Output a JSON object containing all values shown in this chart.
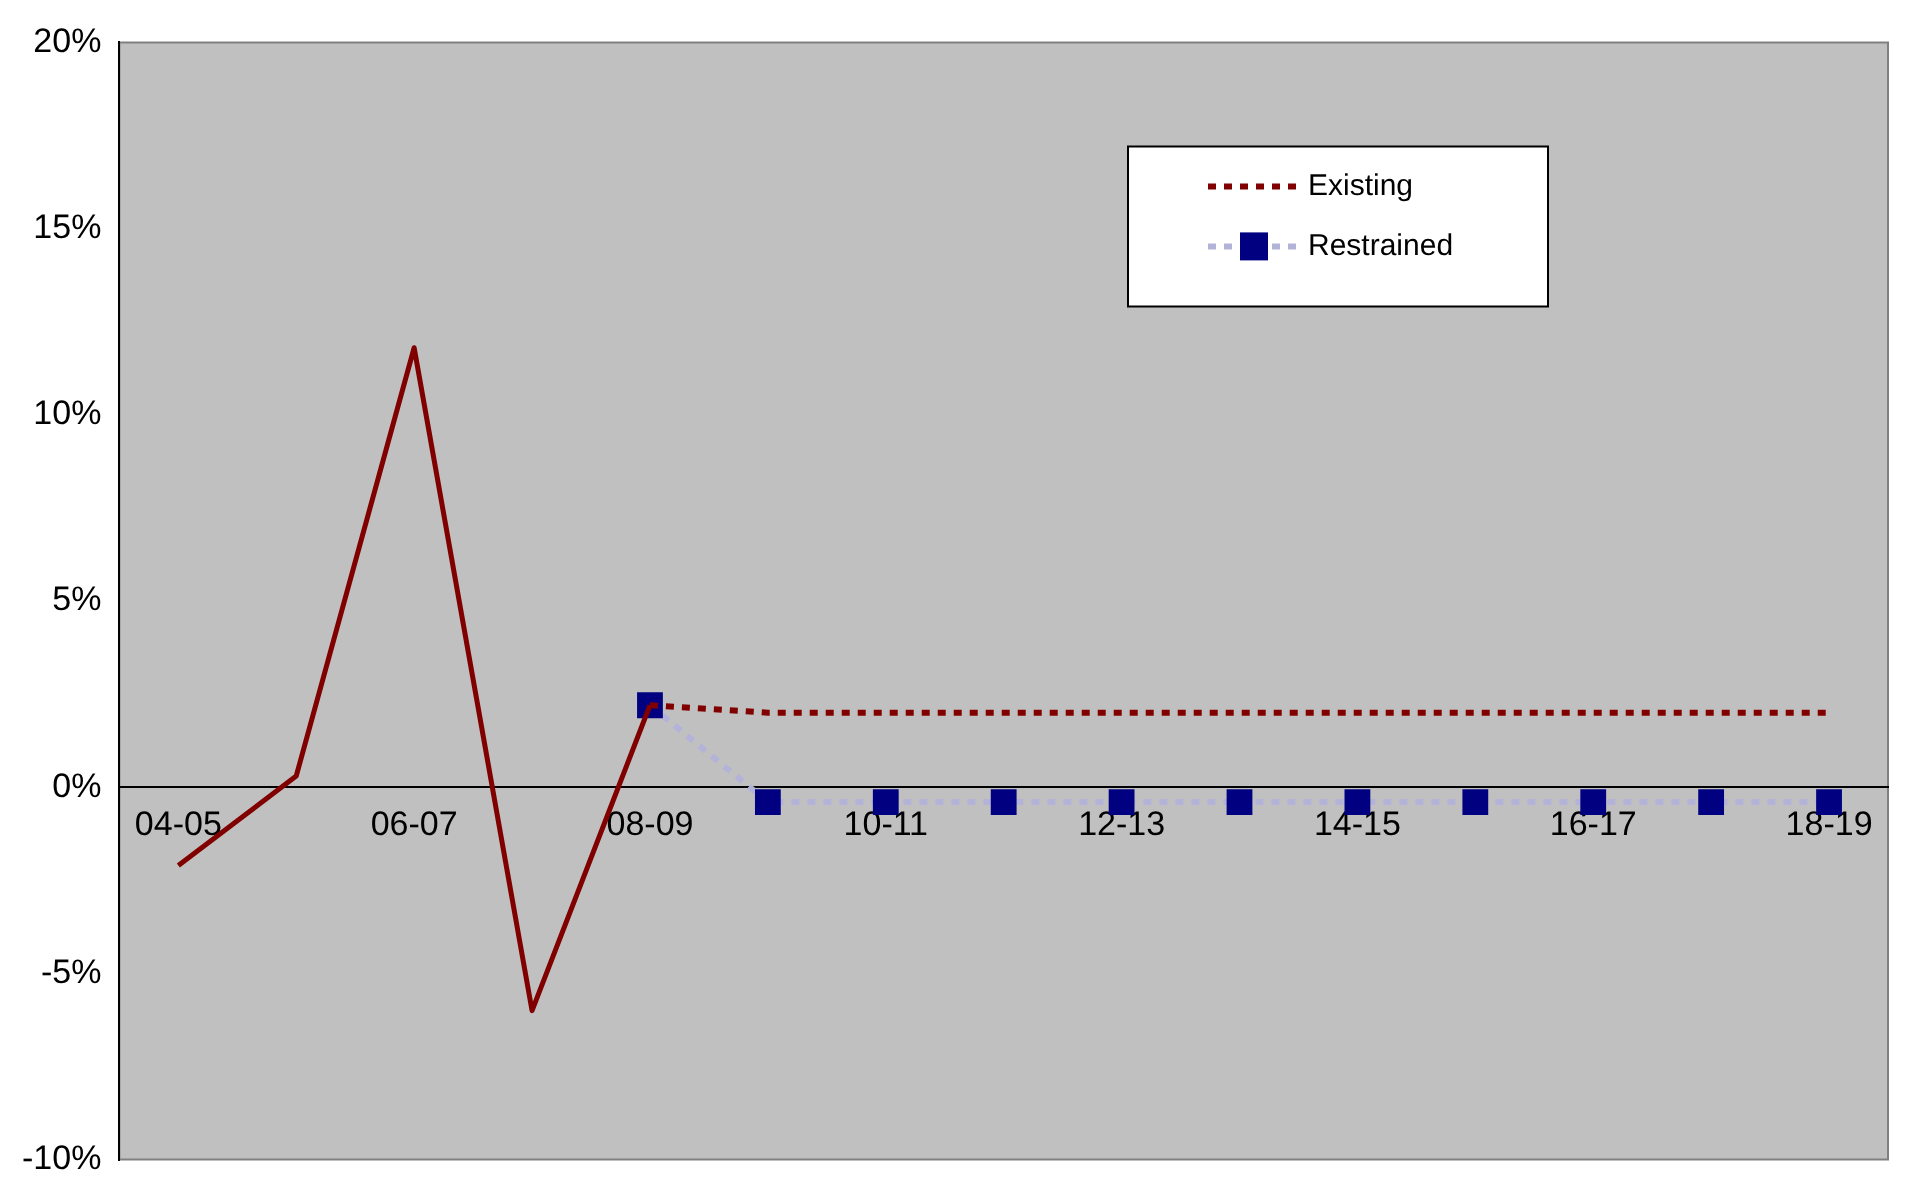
{
  "chart_data": {
    "type": "line",
    "categories": [
      "04-05",
      null,
      "06-07",
      null,
      "08-09",
      null,
      "10-11",
      null,
      "12-13",
      null,
      "14-15",
      null,
      "16-17",
      null,
      "18-19"
    ],
    "series": [
      {
        "color": "#800000",
        "line_style": "solid",
        "marker": "none",
        "values": [
          -2.1,
          0.3,
          11.8,
          -6.0,
          2.2,
          null,
          null,
          null,
          null,
          null,
          null,
          null,
          null,
          null,
          null
        ]
      },
      {
        "name": "Existing",
        "color": "#800000",
        "line_style": "dotted",
        "marker": "none",
        "values": [
          null,
          null,
          null,
          null,
          2.2,
          2.0,
          2.0,
          2.0,
          2.0,
          2.0,
          2.0,
          2.0,
          2.0,
          2.0,
          2.0
        ]
      },
      {
        "name": "Restrained",
        "color": "#000080",
        "line_style": "dotted",
        "marker": "square",
        "values": [
          null,
          null,
          null,
          null,
          2.2,
          -0.4,
          -0.4,
          -0.4,
          -0.4,
          -0.4,
          -0.4,
          -0.4,
          -0.4,
          -0.4,
          -0.4
        ]
      }
    ],
    "ylim": [
      -10,
      20
    ],
    "yticks": [
      {
        "value": -10,
        "label": "-10%"
      },
      {
        "value": -5,
        "label": "-5%"
      },
      {
        "value": 0,
        "label": "0%"
      },
      {
        "value": 5,
        "label": "5%"
      },
      {
        "value": 10,
        "label": "10%"
      },
      {
        "value": 15,
        "label": "15%"
      },
      {
        "value": 20,
        "label": "20%"
      }
    ],
    "grid": false,
    "legend": "top right"
  }
}
